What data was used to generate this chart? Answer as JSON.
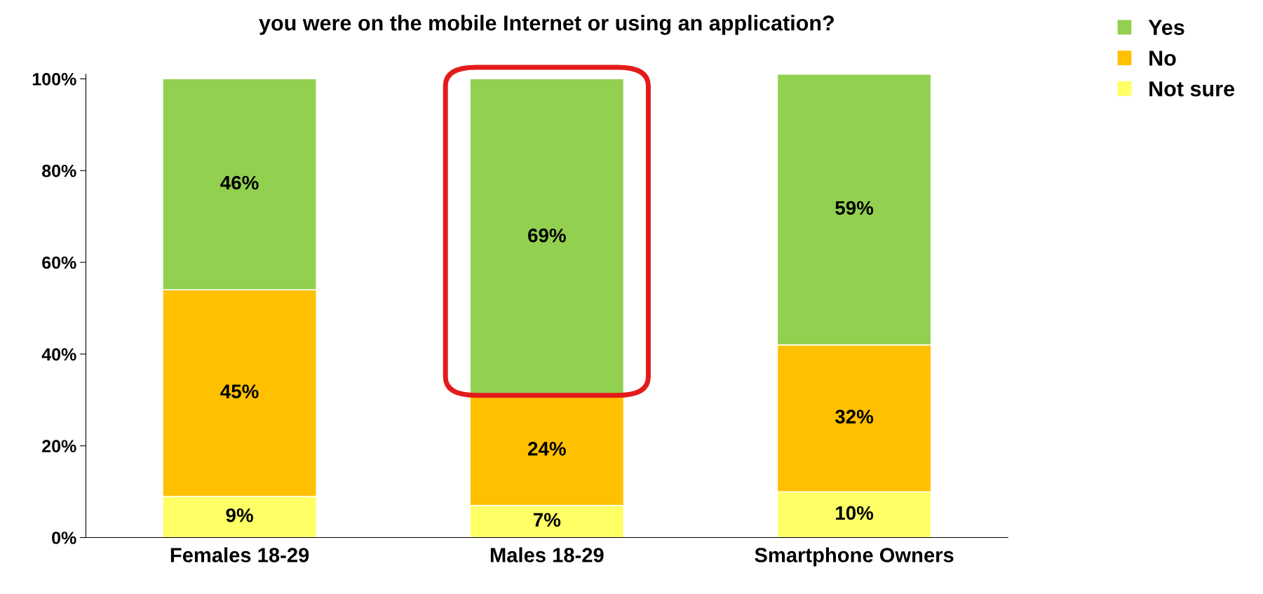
{
  "chart_data": {
    "type": "bar",
    "title": "you were on the mobile Internet or using an application?",
    "stacked": true,
    "categories": [
      "Females 18-29",
      "Males 18-29",
      "Smartphone Owners"
    ],
    "series": [
      {
        "name": "Not sure",
        "color": "#ffff66",
        "values": [
          9,
          7,
          10
        ],
        "value_labels": [
          "9%",
          "7%",
          "10%"
        ]
      },
      {
        "name": "No",
        "color": "#ffc000",
        "values": [
          45,
          24,
          32
        ],
        "value_labels": [
          "45%",
          "24%",
          "32%"
        ]
      },
      {
        "name": "Yes",
        "color": "#92d050",
        "values": [
          46,
          69,
          59
        ],
        "value_labels": [
          "46%",
          "69%",
          "59%"
        ]
      }
    ],
    "ylim": [
      0,
      101
    ],
    "yticks": [
      {
        "value": 0,
        "label": "0%"
      },
      {
        "value": 20,
        "label": "20%"
      },
      {
        "value": 40,
        "label": "40%"
      },
      {
        "value": 60,
        "label": "60%"
      },
      {
        "value": 80,
        "label": "80%"
      },
      {
        "value": 100,
        "label": "100%"
      }
    ],
    "grid": false,
    "legend": "top right"
  }
}
